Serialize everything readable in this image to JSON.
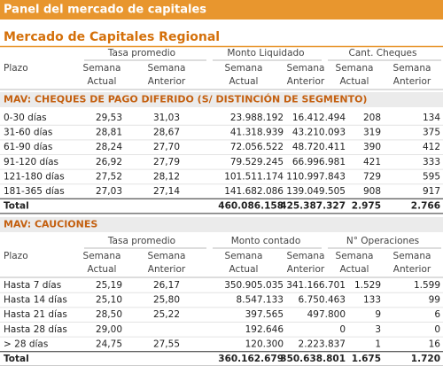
{
  "header": {
    "title": "Panel del mercado de capitales"
  },
  "subtitle": "Mercado de Capitales Regional",
  "sections": [
    {
      "title": "MAV: CHEQUES DE PAGO DIFERIDO (S/ DISTINCIÓN DE SEGMENTO)",
      "row_header": "Plazo",
      "column_groups": [
        "Tasa promedio",
        "Monto Liquidado",
        "Cant. Cheques"
      ],
      "subcolumns": [
        [
          "Semana",
          "Actual"
        ],
        [
          "Semana",
          "Anterior"
        ],
        [
          "Semana",
          "Actual"
        ],
        [
          "Semana",
          "Anterior"
        ],
        [
          "Semana",
          "Actual"
        ],
        [
          "Semana",
          "Anterior"
        ]
      ],
      "rows": [
        [
          "0-30 días",
          "29,53",
          "31,03",
          "23.988.192",
          "16.412.494",
          "208",
          "134"
        ],
        [
          "31-60 días",
          "28,81",
          "28,67",
          "41.318.939",
          "43.210.093",
          "319",
          "375"
        ],
        [
          "61-90 días",
          "28,24",
          "27,70",
          "72.056.522",
          "48.720.411",
          "390",
          "412"
        ],
        [
          "91-120 días",
          "26,92",
          "27,79",
          "79.529.245",
          "66.996.981",
          "421",
          "333"
        ],
        [
          "121-180 días",
          "27,52",
          "28,12",
          "101.511.174",
          "110.997.843",
          "729",
          "595"
        ],
        [
          "181-365 días",
          "27,03",
          "27,14",
          "141.682.086",
          "139.049.505",
          "908",
          "917"
        ]
      ],
      "total": {
        "label": "Total",
        "values": [
          "460.086.158",
          "425.387.327",
          "2.975",
          "2.766"
        ]
      }
    },
    {
      "title": "MAV: CAUCIONES",
      "row_header": "Plazo",
      "column_groups": [
        "Tasa promedio",
        "Monto contado",
        "N° Operaciones"
      ],
      "subcolumns": [
        [
          "Semana",
          "Actual"
        ],
        [
          "Semana",
          "Anterior"
        ],
        [
          "Semana",
          "Actual"
        ],
        [
          "Semana",
          "Anterior"
        ],
        [
          "Semana",
          "Actual"
        ],
        [
          "Semana",
          "Anterior"
        ]
      ],
      "rows": [
        [
          "Hasta 7 días",
          "25,19",
          "26,17",
          "350.905.035",
          "341.166.701",
          "1.529",
          "1.599"
        ],
        [
          "Hasta 14 días",
          "25,10",
          "25,80",
          "8.547.133",
          "6.750.463",
          "133",
          "99"
        ],
        [
          "Hasta 21 días",
          "28,50",
          "25,22",
          "397.565",
          "497.800",
          "9",
          "6"
        ],
        [
          "Hasta 28 días",
          "29,00",
          null,
          "192.646",
          "0",
          "3",
          "0"
        ],
        [
          "> 28 días",
          "24,75",
          "27,55",
          "120.300",
          "2.223.837",
          "1",
          "16"
        ]
      ],
      "total": {
        "label": "Total",
        "values": [
          "360.162.679",
          "350.638.801",
          "1.675",
          "1.720"
        ]
      }
    }
  ]
}
